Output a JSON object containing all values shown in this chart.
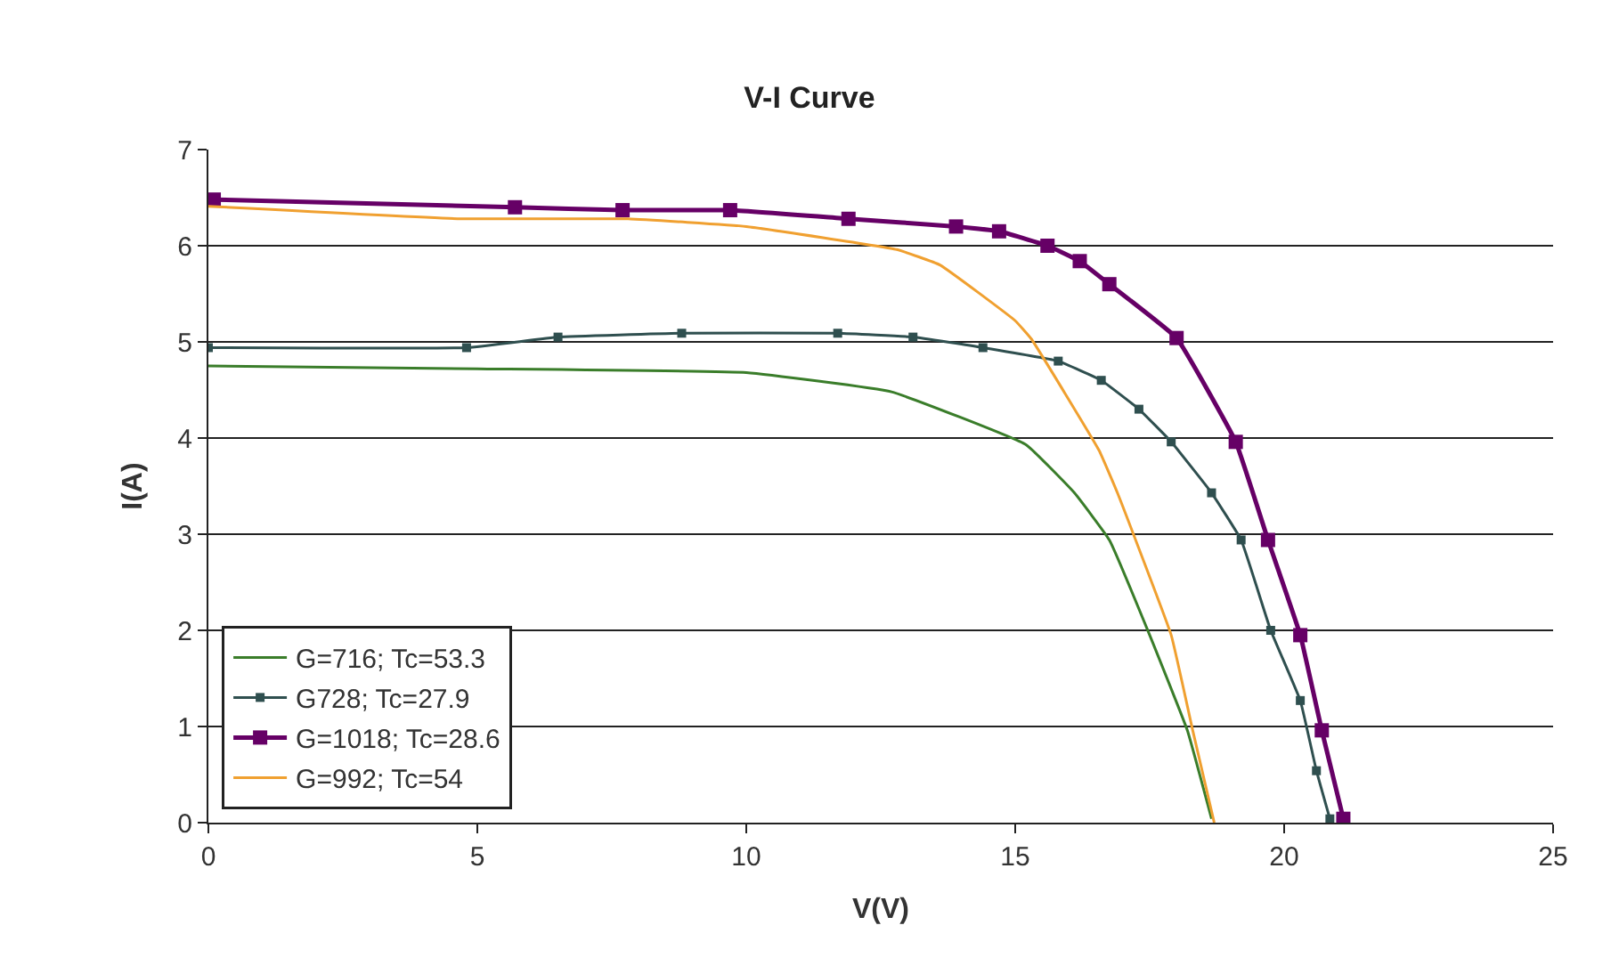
{
  "chart_data": {
    "type": "line",
    "title": "V-I Curve",
    "xlabel": "V(V)",
    "ylabel": "I(A)",
    "xlim": [
      0,
      25
    ],
    "xticks": [
      0,
      5,
      10,
      15,
      20,
      25
    ],
    "ylim": [
      0,
      7
    ],
    "yticks": [
      0,
      1,
      2,
      3,
      4,
      5,
      6,
      7
    ],
    "grid": "y",
    "legend": "bottom left",
    "series": [
      {
        "name": "G=716; Tc=53.3",
        "color": "#3a7d2a",
        "marker": "none",
        "x": [
          0,
          5,
          10,
          12.7,
          15.2,
          16.1,
          16.75,
          17.5,
          18.2,
          18.65
        ],
        "values": [
          4.75,
          4.72,
          4.68,
          4.48,
          3.93,
          3.43,
          2.94,
          1.95,
          0.96,
          0.04
        ]
      },
      {
        "name": "G728; Tc=27.9",
        "color": "#2f4f4f",
        "marker": "square",
        "x": [
          0,
          4.8,
          6.5,
          8.8,
          11.7,
          13.1,
          14.4,
          15.8,
          16.6,
          17.3,
          17.9,
          18.65,
          19.2,
          19.75,
          20.3,
          20.6,
          20.85
        ],
        "values": [
          4.94,
          4.94,
          5.05,
          5.09,
          5.09,
          5.05,
          4.94,
          4.8,
          4.6,
          4.3,
          3.96,
          3.43,
          2.94,
          2.0,
          1.27,
          0.54,
          0.04
        ]
      },
      {
        "name": "G=1018; Tc=28.6",
        "color": "#660066",
        "marker": "square",
        "x": [
          0.1,
          5.7,
          7.7,
          9.7,
          11.9,
          13.9,
          14.7,
          15.6,
          16.2,
          16.75,
          18.0,
          19.1,
          19.7,
          20.3,
          20.7,
          21.1
        ],
        "values": [
          6.48,
          6.4,
          6.37,
          6.37,
          6.28,
          6.2,
          6.15,
          6.0,
          5.84,
          5.6,
          5.04,
          3.96,
          2.94,
          1.95,
          0.96,
          0.04
        ]
      },
      {
        "name": "G=992; Tc=54",
        "color": "#f0a030",
        "marker": "none",
        "x": [
          0,
          4.7,
          7.8,
          10.0,
          12.8,
          13.6,
          15.0,
          15.3,
          16.56,
          16.9,
          17.9,
          18.3,
          18.7
        ],
        "values": [
          6.41,
          6.28,
          6.28,
          6.2,
          5.96,
          5.8,
          5.22,
          5.03,
          3.87,
          3.43,
          1.95,
          0.96,
          0.0
        ]
      }
    ]
  }
}
